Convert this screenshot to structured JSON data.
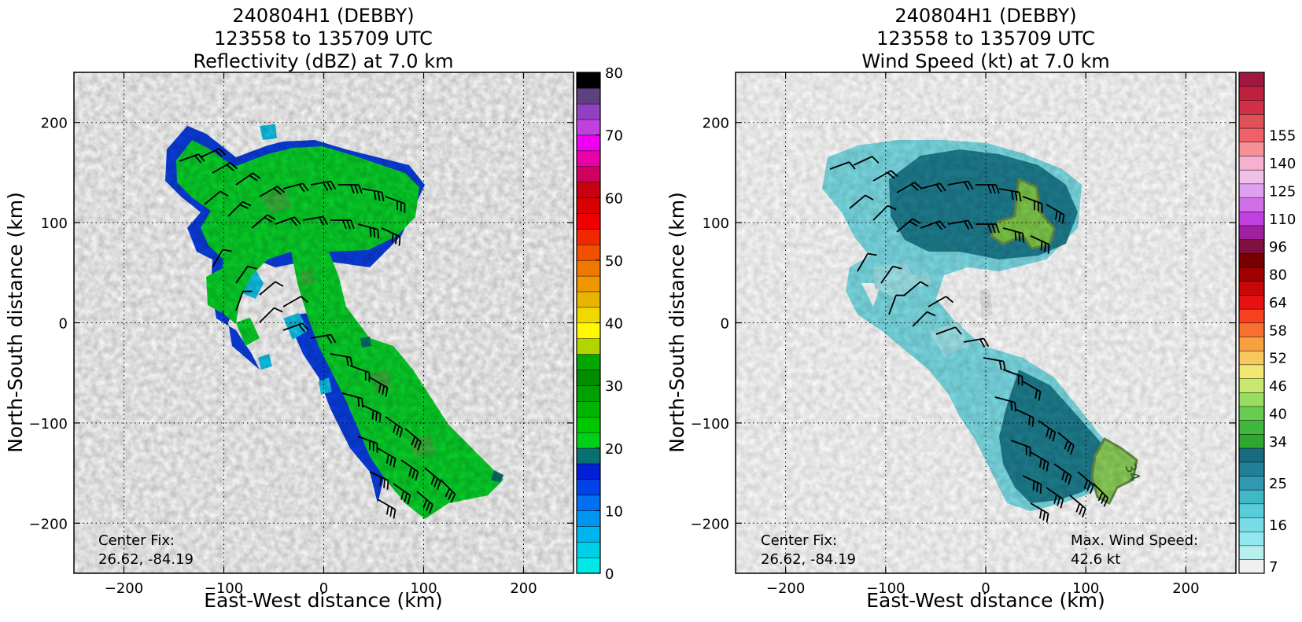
{
  "chart_data": [
    {
      "type": "heatmap",
      "variable": "reflectivity",
      "title_lines": [
        "240804H1 (DEBBY)",
        "123558 to 135709 UTC",
        "Reflectivity (dBZ) at 7.0 km"
      ],
      "xlabel": "East-West distance (km)",
      "ylabel": "North-South distance (km)",
      "xlim": [
        -250,
        250
      ],
      "ylim": [
        -250,
        250
      ],
      "xticks": [
        -200,
        -100,
        0,
        100,
        200
      ],
      "yticks": [
        -200,
        -100,
        0,
        100,
        200
      ],
      "grid": true,
      "colorbar": {
        "min": 0,
        "max": 80,
        "step": 2.5,
        "ticks": [
          0,
          10,
          20,
          30,
          40,
          50,
          60,
          70,
          80
        ],
        "colors": [
          "#00e8e8",
          "#00cfe8",
          "#00b4f0",
          "#0096f0",
          "#0070f0",
          "#0044e8",
          "#0020d8",
          "#087070",
          "#00d018",
          "#00c800",
          "#00b400",
          "#00a000",
          "#008c00",
          "#00a800",
          "#b4d400",
          "#fff800",
          "#f0d800",
          "#e8b400",
          "#f09600",
          "#f07800",
          "#f05000",
          "#f02800",
          "#f00000",
          "#d80000",
          "#c80010",
          "#d00060",
          "#e800a8",
          "#f000f0",
          "#c040e0",
          "#9040c0",
          "#604080",
          "#000000"
        ]
      },
      "annotations": [
        "Center Fix:",
        "26.62, -84.19"
      ],
      "center_fix": {
        "lat": 26.62,
        "lon": -84.19
      }
    },
    {
      "type": "heatmap",
      "variable": "wind_speed",
      "title_lines": [
        "240804H1 (DEBBY)",
        "123558 to 135709 UTC",
        "Wind Speed (kt) at 7.0 km"
      ],
      "xlabel": "East-West distance (km)",
      "ylabel": "North-South distance (km)",
      "xlim": [
        -250,
        250
      ],
      "ylim": [
        -250,
        250
      ],
      "xticks": [
        -200,
        -100,
        0,
        100,
        200
      ],
      "yticks": [
        -200,
        -100,
        0,
        100,
        200
      ],
      "grid": true,
      "colorbar": {
        "tick_labels": [
          "7",
          "16",
          "25",
          "34",
          "40",
          "46",
          "52",
          "58",
          "64",
          "80",
          "96",
          "110",
          "125",
          "140",
          "155"
        ],
        "tick_indices": [
          0,
          3,
          6,
          9,
          11,
          13,
          15,
          17,
          19,
          21,
          23,
          25,
          27,
          29,
          31
        ],
        "colors": [
          "#f0f0f0",
          "#b8f0f0",
          "#90e8f0",
          "#78dce8",
          "#58ccd8",
          "#40b8c8",
          "#3098b0",
          "#208098",
          "#186c80",
          "#30a830",
          "#40b840",
          "#68cc50",
          "#98dc60",
          "#c8e870",
          "#f0e870",
          "#f8c860",
          "#f8a040",
          "#f87030",
          "#f84020",
          "#e81010",
          "#c80808",
          "#a00000",
          "#780000",
          "#801040",
          "#a020a0",
          "#c040e0",
          "#d070e8",
          "#e0a0f0",
          "#f0c0e8",
          "#f8b0d0",
          "#f89098",
          "#f06068"
        ],
        "top_colors": [
          "#e05058",
          "#d03048",
          "#c02040",
          "#a01840"
        ]
      },
      "annotations": [
        "Center Fix:",
        "26.62, -84.19"
      ],
      "max_wind_label": "Max. Wind Speed:",
      "max_wind_value": "42.6 kt",
      "contour_label": "34",
      "center_fix": {
        "lat": 26.62,
        "lon": -84.19
      }
    }
  ]
}
